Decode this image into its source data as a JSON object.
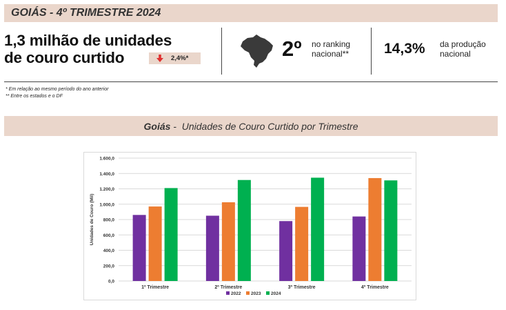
{
  "header": {
    "title": "GOIÁS - 4º TRIMESTRE 2024"
  },
  "highlights": {
    "production_line1": "1,3 milhão de unidades",
    "production_line2": "de couro curtido",
    "change_value": "2,4%*",
    "change_direction": "down",
    "ranking_value": "2º",
    "ranking_label_line1": "no ranking",
    "ranking_label_line2": "nacional**",
    "share_value": "14,3%",
    "share_label_line1": "da produção",
    "share_label_line2": "nacional"
  },
  "footnotes": {
    "note1": "* Em relação ao mesmo período do ano anterior",
    "note2": "** Entre os estados e o DF"
  },
  "section": {
    "title_bold": "Goiás",
    "title_rest": " -  Unidades de Couro Curtido por Trimestre"
  },
  "colors": {
    "banner": "#ead6cb",
    "series_2022": "#7030a0",
    "series_2023": "#ed7d31",
    "series_2024": "#00b050",
    "arrow_down": "#e03030"
  },
  "chart_data": {
    "type": "bar",
    "categories": [
      "1º Trimestre",
      "2º Trimestre",
      "3º Trimestre",
      "4º Trimestre"
    ],
    "series": [
      {
        "name": "2022",
        "values": [
          860,
          850,
          780,
          840
        ]
      },
      {
        "name": "2023",
        "values": [
          970,
          1025,
          965,
          1340
        ]
      },
      {
        "name": "2024",
        "values": [
          1210,
          1315,
          1345,
          1310
        ]
      }
    ],
    "ylabel": "Unidades de Couro (Mil)",
    "ylim": [
      0,
      1600
    ],
    "yticks": [
      0,
      200,
      400,
      600,
      800,
      1000,
      1200,
      1400,
      1600
    ],
    "ytick_labels": [
      "0,0",
      "200,0",
      "400,0",
      "600,0",
      "800,0",
      "1.000,0",
      "1.200,0",
      "1.400,0",
      "1.600,0"
    ],
    "grid": true,
    "legend": "bottom"
  }
}
